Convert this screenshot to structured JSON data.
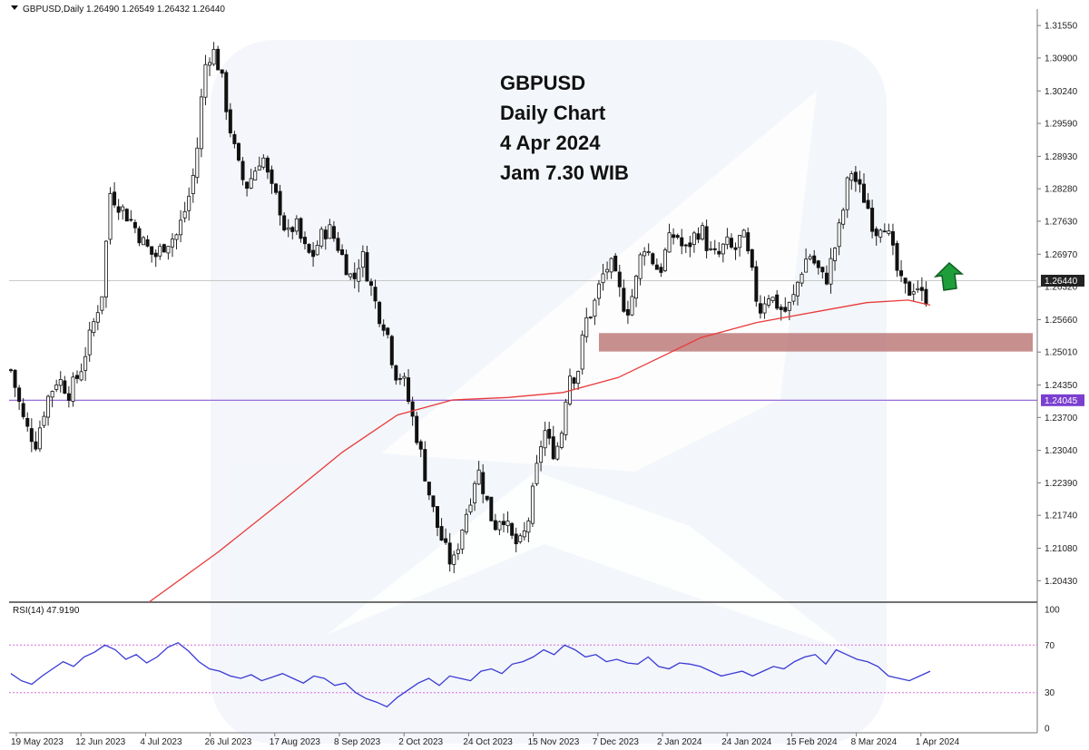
{
  "header": {
    "symbol_info": "GBPUSD,Daily  1.26490 1.26549 1.26432 1.26440",
    "dropdown_icon": "triangle-down-icon"
  },
  "annotation": {
    "lines": [
      "GBPUSD",
      "Daily Chart",
      "4 Apr 2024",
      "Jam 7.30 WIB"
    ]
  },
  "watermark": {
    "icon": "brand-logo-watermark"
  },
  "arrow": {
    "icon": "green-up-arrow-icon",
    "color": "#1f9d3a"
  },
  "colors": {
    "ma_line": "#e83a3a",
    "support_zone": "#b56a6a",
    "level_line": "#8a5cd6",
    "level_badge": "#7b3fd0",
    "price_badge": "#222222",
    "rsi_line": "#3a3ad6",
    "rsi_levels": "#d96bd9"
  },
  "chart_data": [
    {
      "type": "candlestick",
      "title": "GBPUSD,Daily",
      "x_ticks": [
        "19 May 2023",
        "12 Jun 2023",
        "4 Jul 2023",
        "26 Jul 2023",
        "17 Aug 2023",
        "8 Sep 2023",
        "2 Oct 2023",
        "24 Oct 2023",
        "15 Nov 2023",
        "7 Dec 2023",
        "2 Jan 2024",
        "24 Jan 2024",
        "15 Feb 2024",
        "8 Mar 2024",
        "1 Apr 2024"
      ],
      "y_ticks": [
        "1.31550",
        "1.30900",
        "1.30240",
        "1.29590",
        "1.28930",
        "1.28280",
        "1.27630",
        "1.26970",
        "1.26320",
        "1.25660",
        "1.25010",
        "1.24350",
        "1.23700",
        "1.23040",
        "1.22390",
        "1.21740",
        "1.21080",
        "1.20430"
      ],
      "ylim": [
        1.2,
        1.3188
      ],
      "last_price": "1.26440",
      "horizontal_level": "1.24045",
      "support_zone": [
        1.2502,
        1.2539
      ],
      "close_path": [
        [
          0,
          1.2465
        ],
        [
          10,
          1.2355
        ],
        [
          18,
          1.232
        ],
        [
          26,
          1.2405
        ],
        [
          34,
          1.245
        ],
        [
          42,
          1.242
        ],
        [
          50,
          1.246
        ],
        [
          58,
          1.254
        ],
        [
          66,
          1.262
        ],
        [
          72,
          1.282
        ],
        [
          80,
          1.279
        ],
        [
          88,
          1.276
        ],
        [
          96,
          1.272
        ],
        [
          104,
          1.269
        ],
        [
          112,
          1.272
        ],
        [
          120,
          1.2735
        ],
        [
          128,
          1.28
        ],
        [
          134,
          1.288
        ],
        [
          140,
          1.307
        ],
        [
          146,
          1.311
        ],
        [
          152,
          1.306
        ],
        [
          158,
          1.296
        ],
        [
          164,
          1.288
        ],
        [
          170,
          1.283
        ],
        [
          176,
          1.286
        ],
        [
          182,
          1.29
        ],
        [
          188,
          1.283
        ],
        [
          194,
          1.28
        ],
        [
          200,
          1.273
        ],
        [
          206,
          1.276
        ],
        [
          212,
          1.271
        ],
        [
          218,
          1.269
        ],
        [
          224,
          1.273
        ],
        [
          230,
          1.275
        ],
        [
          236,
          1.272
        ],
        [
          242,
          1.268
        ],
        [
          248,
          1.264
        ],
        [
          254,
          1.27
        ],
        [
          260,
          1.264
        ],
        [
          266,
          1.258
        ],
        [
          272,
          1.255
        ],
        [
          278,
          1.246
        ],
        [
          284,
          1.245
        ],
        [
          290,
          1.238
        ],
        [
          296,
          1.231
        ],
        [
          302,
          1.223
        ],
        [
          308,
          1.216
        ],
        [
          314,
          1.211
        ],
        [
          320,
          1.207
        ],
        [
          326,
          1.214
        ],
        [
          332,
          1.22
        ],
        [
          338,
          1.227
        ],
        [
          344,
          1.221
        ],
        [
          350,
          1.215
        ],
        [
          356,
          1.218
        ],
        [
          362,
          1.213
        ],
        [
          368,
          1.211
        ],
        [
          374,
          1.215
        ],
        [
          380,
          1.225
        ],
        [
          386,
          1.235
        ],
        [
          392,
          1.23
        ],
        [
          398,
          1.232
        ],
        [
          404,
          1.246
        ],
        [
          410,
          1.245
        ],
        [
          416,
          1.256
        ],
        [
          422,
          1.259
        ],
        [
          428,
          1.265
        ],
        [
          434,
          1.268
        ],
        [
          440,
          1.263
        ],
        [
          446,
          1.258
        ],
        [
          452,
          1.263
        ],
        [
          458,
          1.272
        ],
        [
          464,
          1.269
        ],
        [
          470,
          1.266
        ],
        [
          476,
          1.272
        ],
        [
          482,
          1.274
        ],
        [
          488,
          1.27
        ],
        [
          494,
          1.273
        ],
        [
          500,
          1.275
        ],
        [
          506,
          1.27
        ],
        [
          512,
          1.269
        ],
        [
          518,
          1.272
        ],
        [
          524,
          1.27
        ],
        [
          530,
          1.274
        ],
        [
          536,
          1.267
        ],
        [
          542,
          1.258
        ],
        [
          548,
          1.262
        ],
        [
          554,
          1.26
        ],
        [
          560,
          1.258
        ],
        [
          566,
          1.26
        ],
        [
          572,
          1.266
        ],
        [
          578,
          1.27
        ],
        [
          584,
          1.267
        ],
        [
          590,
          1.264
        ],
        [
          596,
          1.27
        ],
        [
          602,
          1.277
        ],
        [
          608,
          1.287
        ],
        [
          614,
          1.283
        ],
        [
          620,
          1.28
        ],
        [
          626,
          1.274
        ],
        [
          632,
          1.277
        ],
        [
          638,
          1.271
        ],
        [
          644,
          1.264
        ],
        [
          650,
          1.262
        ],
        [
          656,
          1.264
        ],
        [
          662,
          1.26
        ],
        [
          666,
          1.2644
        ]
      ],
      "ma_path": [
        [
          100,
          1.2
        ],
        [
          150,
          1.21
        ],
        [
          200,
          1.221
        ],
        [
          240,
          1.23
        ],
        [
          280,
          1.2375
        ],
        [
          320,
          1.2405
        ],
        [
          360,
          1.241
        ],
        [
          400,
          1.242
        ],
        [
          440,
          1.245
        ],
        [
          470,
          1.249
        ],
        [
          500,
          1.253
        ],
        [
          540,
          1.256
        ],
        [
          580,
          1.258
        ],
        [
          620,
          1.26
        ],
        [
          650,
          1.2605
        ],
        [
          666,
          1.2595
        ]
      ]
    },
    {
      "type": "line",
      "title": "RSI(14) 47.9190",
      "y_ticks": [
        "100",
        "70",
        "30",
        "0"
      ],
      "ylim": [
        0,
        100
      ],
      "levels": [
        70,
        30
      ],
      "values": [
        46,
        40,
        37,
        44,
        50,
        56,
        52,
        60,
        64,
        70,
        66,
        58,
        62,
        55,
        60,
        68,
        72,
        65,
        56,
        50,
        48,
        44,
        42,
        45,
        40,
        43,
        46,
        42,
        38,
        44,
        42,
        36,
        38,
        30,
        25,
        22,
        18,
        26,
        32,
        38,
        42,
        36,
        44,
        42,
        40,
        48,
        50,
        46,
        54,
        56,
        60,
        66,
        62,
        70,
        66,
        60,
        62,
        56,
        58,
        55,
        54,
        60,
        52,
        50,
        55,
        54,
        52,
        48,
        44,
        46,
        48,
        44,
        48,
        52,
        50,
        56,
        60,
        62,
        54,
        66,
        62,
        58,
        56,
        52,
        44,
        42,
        40,
        44,
        48
      ]
    }
  ]
}
